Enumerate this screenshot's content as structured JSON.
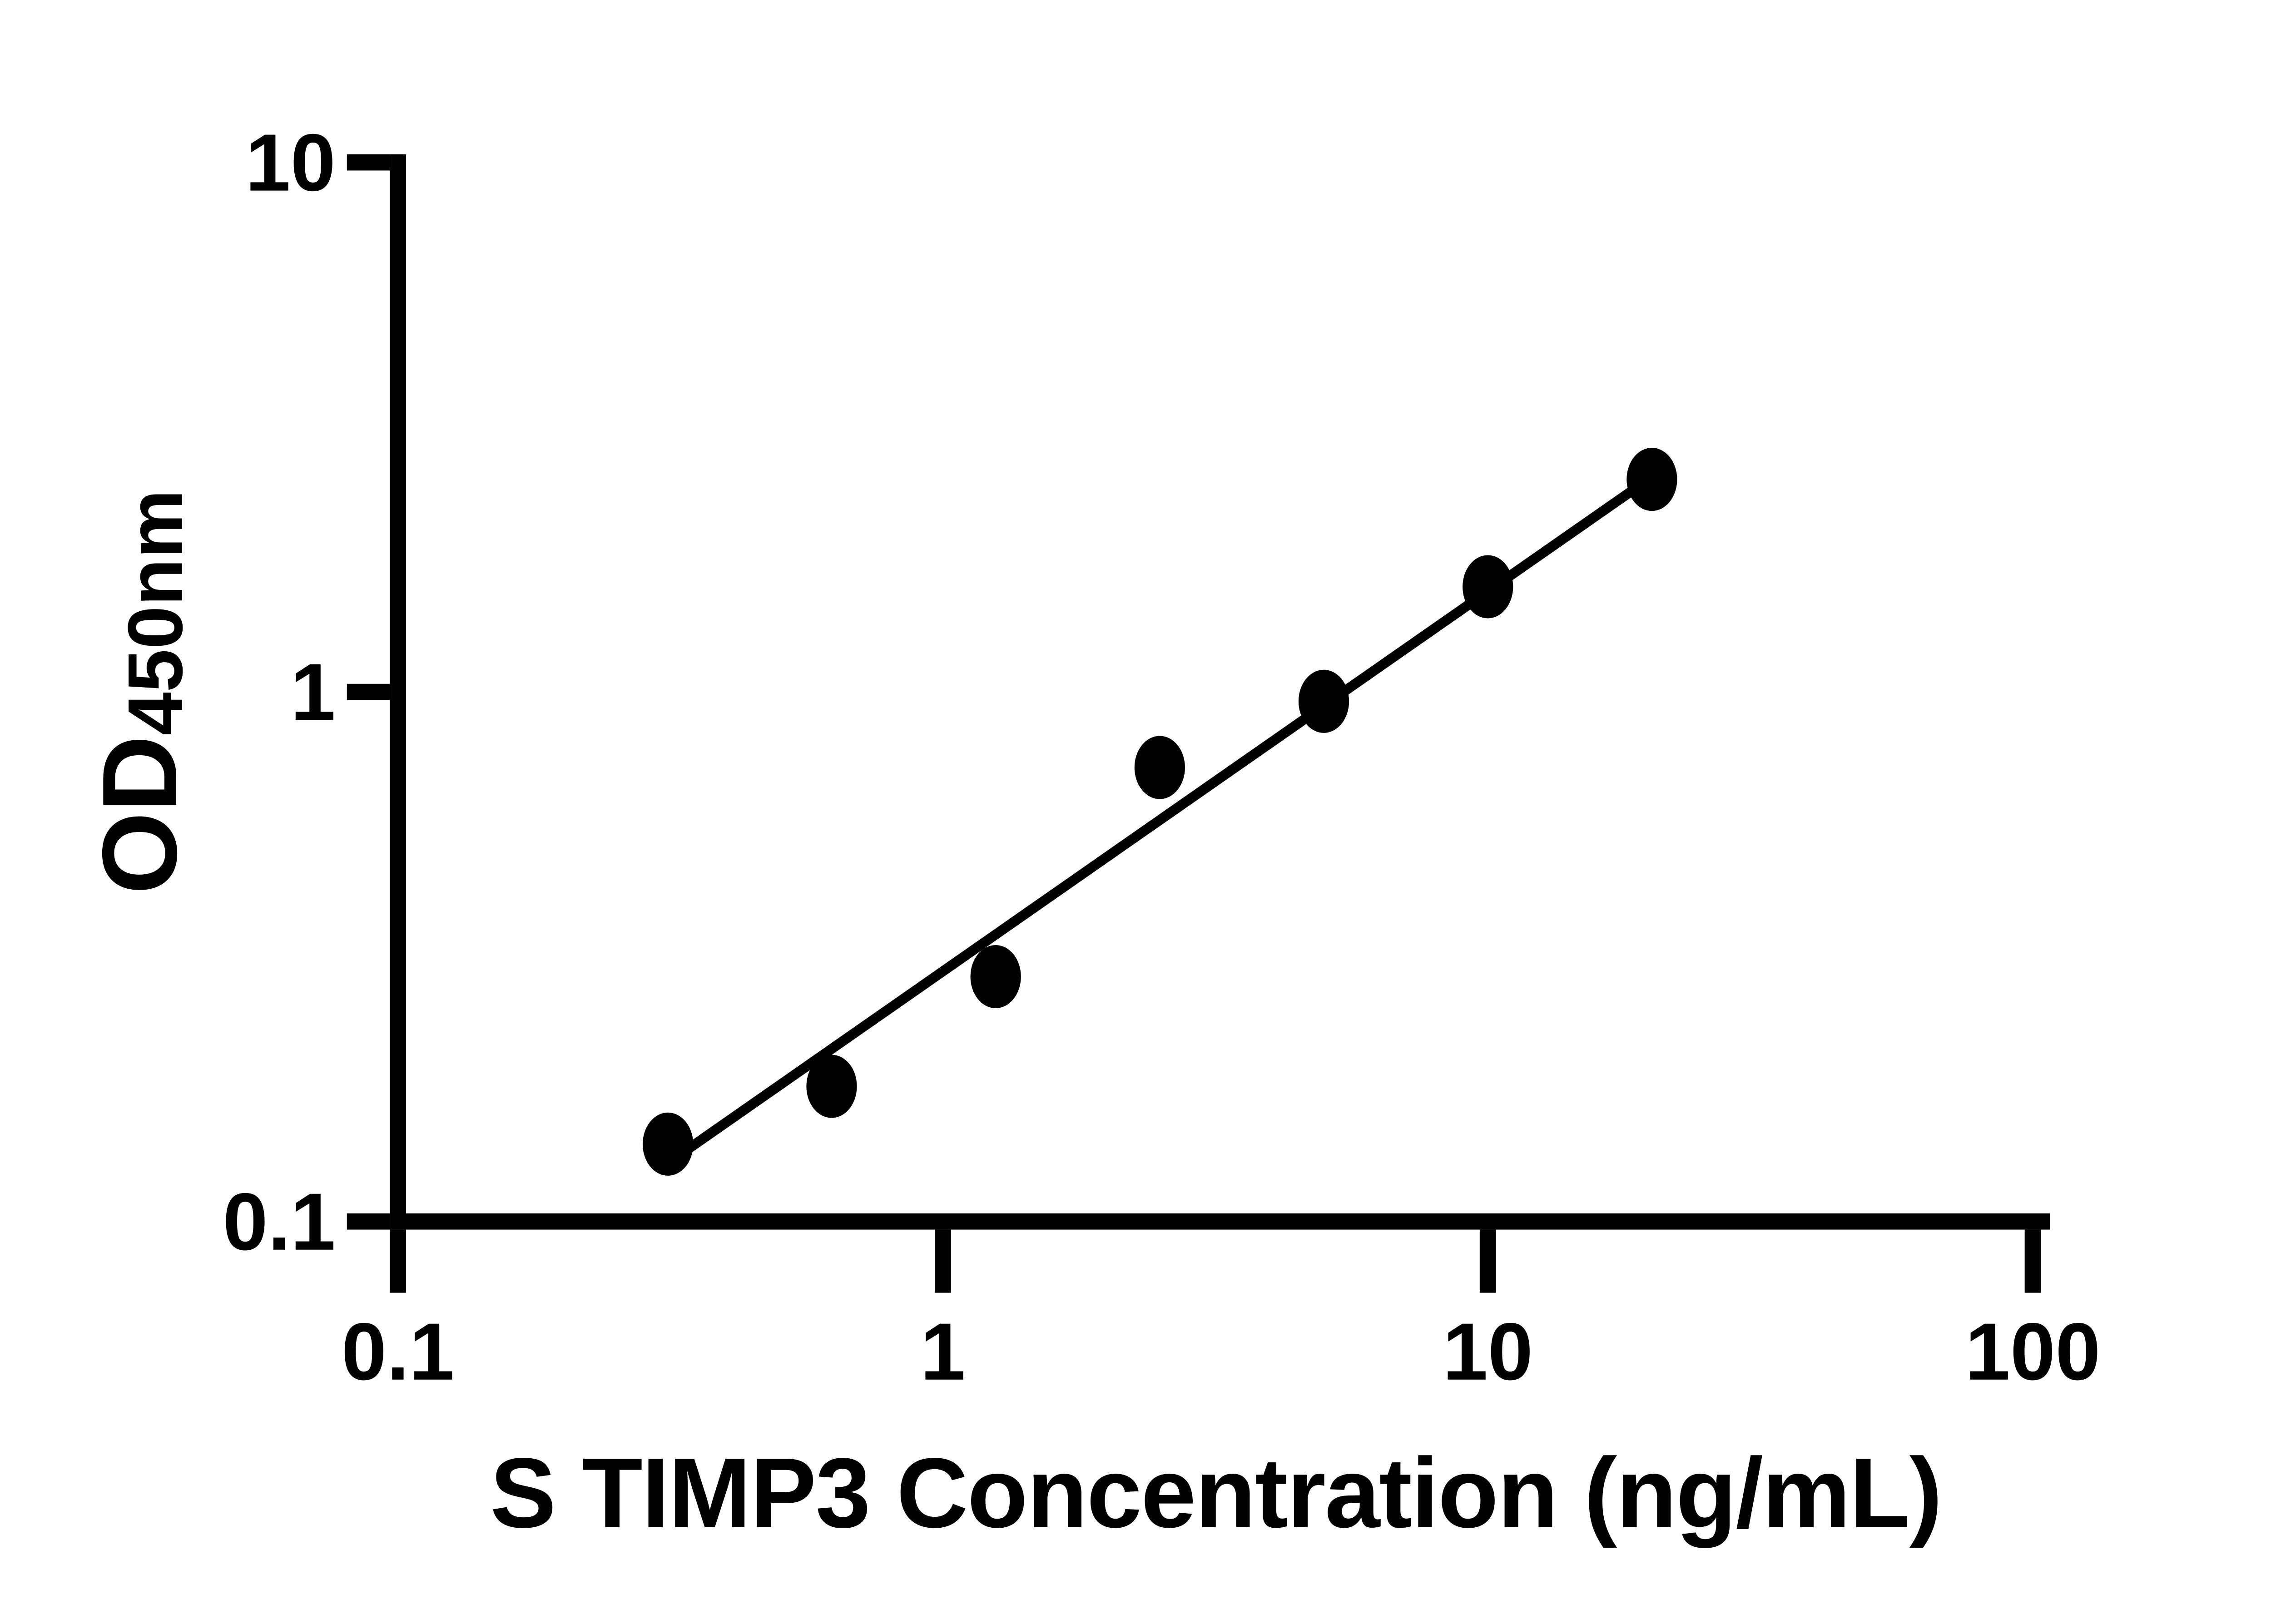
{
  "page": {
    "background": "#ffffff",
    "foreground": "#000000"
  },
  "chart_data": {
    "type": "scatter",
    "title": "",
    "xlabel": "S TIMP3 Concentration (ng/mL)",
    "ylabel": {
      "main": "OD",
      "subscript": "450nm"
    },
    "x_scale": "log10",
    "y_scale": "log10",
    "xlim": [
      0.1,
      100
    ],
    "ylim": [
      0.1,
      10
    ],
    "grid": false,
    "legend": null,
    "x_ticks": [
      {
        "v": 0.1,
        "label": "0.1"
      },
      {
        "v": 1,
        "label": "1"
      },
      {
        "v": 10,
        "label": "10"
      },
      {
        "v": 100,
        "label": "100"
      }
    ],
    "y_ticks": [
      {
        "v": 10,
        "label": "10"
      },
      {
        "v": 1,
        "label": "1"
      },
      {
        "v": 0.1,
        "label": "0.1"
      }
    ],
    "series": [
      {
        "name": "standard-curve-points",
        "marker": "filled-ellipse",
        "points": [
          {
            "x": 0.313,
            "y": 0.14
          },
          {
            "x": 0.625,
            "y": 0.18
          },
          {
            "x": 1.25,
            "y": 0.29
          },
          {
            "x": 2.5,
            "y": 0.72
          },
          {
            "x": 5,
            "y": 0.96
          },
          {
            "x": 10,
            "y": 1.58
          },
          {
            "x": 20,
            "y": 2.52
          }
        ]
      }
    ],
    "fit_line": {
      "x1": 0.32,
      "y1": 0.131,
      "x2": 20.8,
      "y2": 2.62
    },
    "colors": {
      "points": "#000000",
      "line": "#000000",
      "axis": "#000000",
      "text": "#000000"
    }
  }
}
